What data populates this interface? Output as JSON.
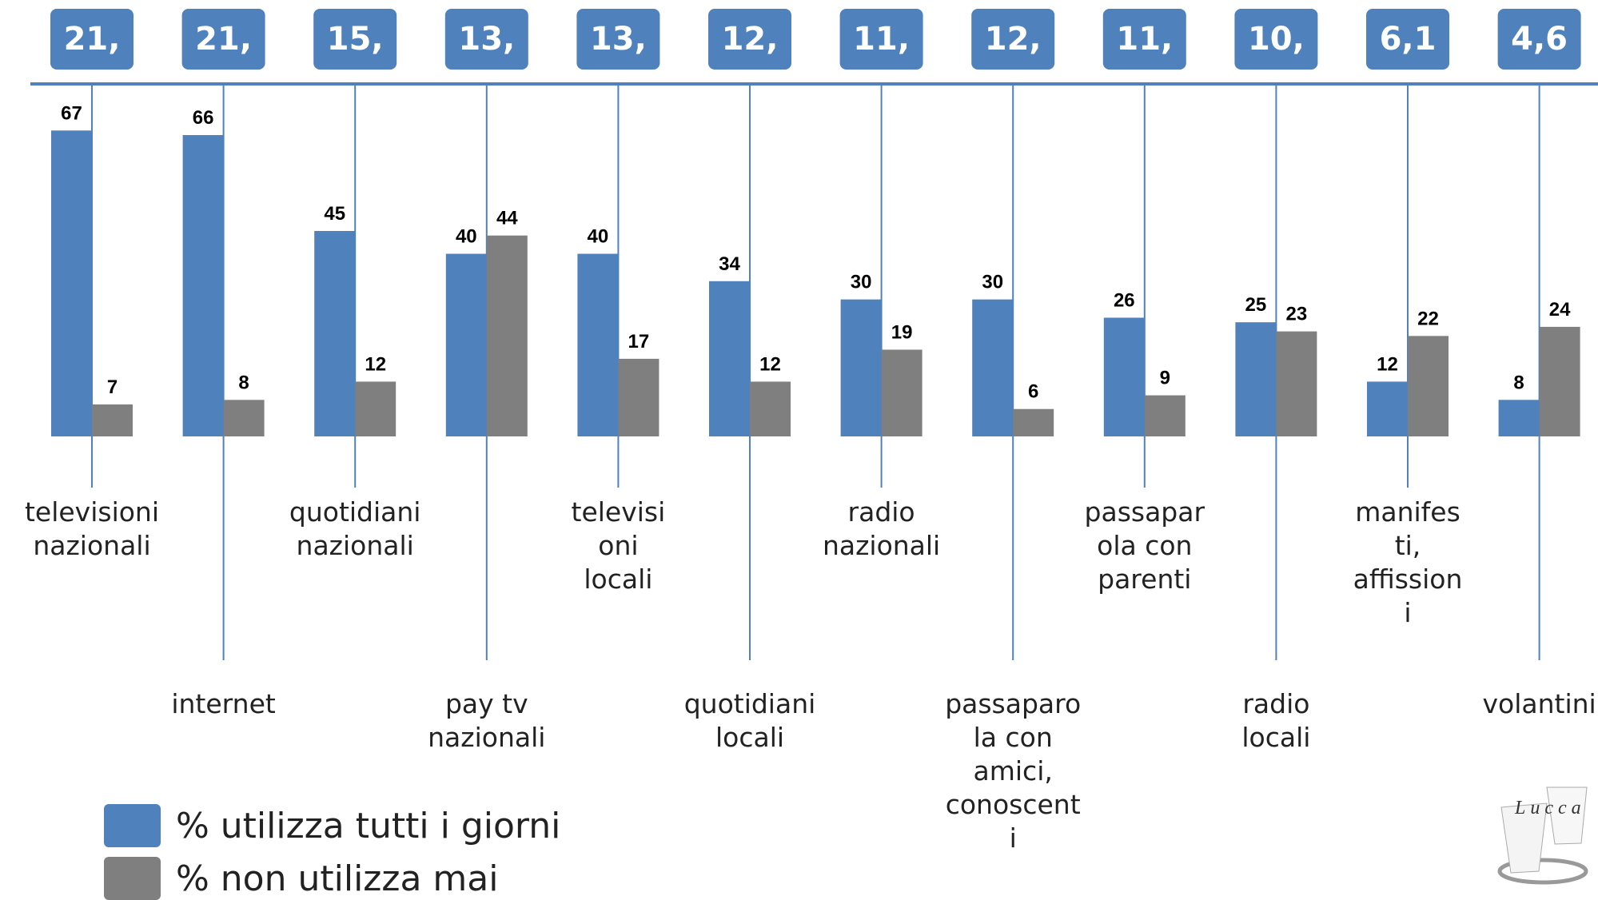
{
  "chart_data": {
    "type": "bar",
    "badges": [
      "21,",
      "21,",
      "15,",
      "13,",
      "13,",
      "12,",
      "11,",
      "12,",
      "11,",
      "10,",
      "6,1",
      "4,6"
    ],
    "categories": [
      "televisioni\nnazionali",
      "internet",
      "quotidiani\nnazionali",
      "pay tv\nnazionali",
      "televisi\noni\nlocali",
      "quotidiani\nlocali",
      "radio\nnazionali",
      "passaparo\nla con\namici,\nconoscent\ni",
      "passapar\nola con\nparenti",
      "radio\nlocali",
      "manifes\nti,\naffission\ni",
      "volantini"
    ],
    "series": [
      {
        "name": "% utilizza tutti i giorni",
        "color": "#4f81bd",
        "values": [
          67,
          66,
          45,
          40,
          40,
          34,
          30,
          30,
          26,
          25,
          12,
          8
        ]
      },
      {
        "name": "% non utilizza mai",
        "color": "#7f7f7f",
        "values": [
          7,
          8,
          12,
          44,
          17,
          12,
          19,
          6,
          9,
          23,
          22,
          24
        ]
      }
    ],
    "logo": "Lucca"
  }
}
